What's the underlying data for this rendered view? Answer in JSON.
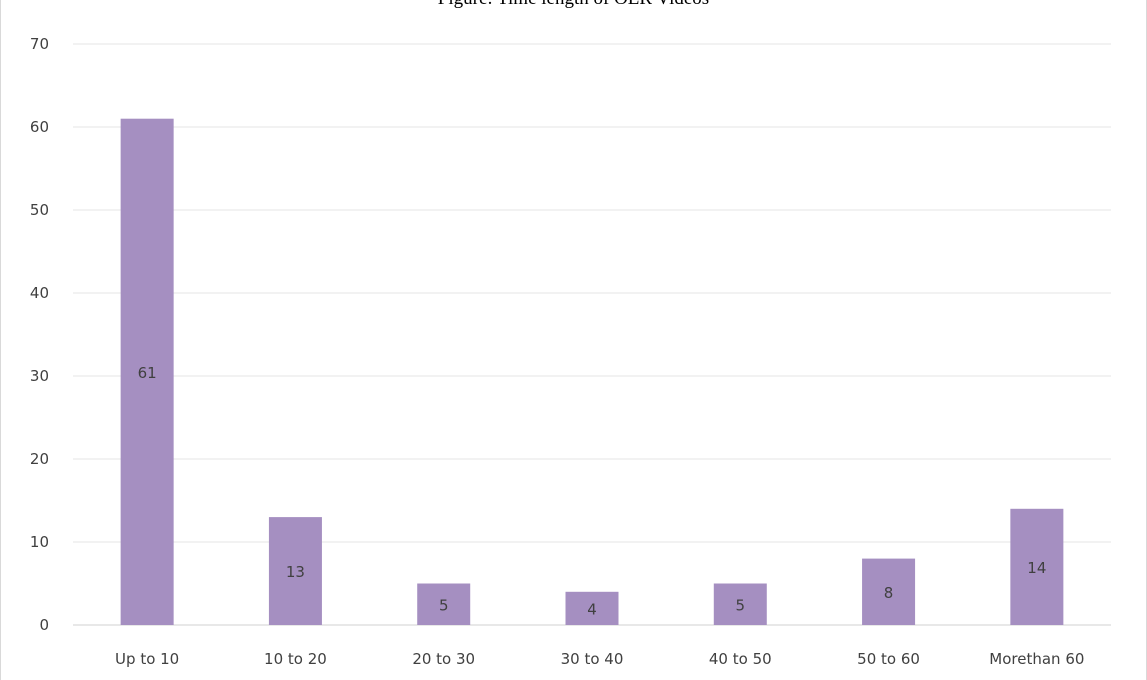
{
  "chart_data": {
    "type": "bar",
    "title": "Figure: Time length of OER Videos",
    "categories": [
      "Up to 10",
      "10 to 20",
      "20 to 30",
      "30 to 40",
      "40 to 50",
      "50 to 60",
      "Morethan 60"
    ],
    "values": [
      61,
      13,
      5,
      4,
      5,
      8,
      14
    ],
    "xlabel": "",
    "ylabel": "",
    "ylim": [
      0,
      70
    ],
    "yticks": [
      0,
      10,
      20,
      30,
      40,
      50,
      60,
      70
    ],
    "grid": true,
    "legend": "none",
    "bar_color": "#a58fc1",
    "data_labels": true
  }
}
